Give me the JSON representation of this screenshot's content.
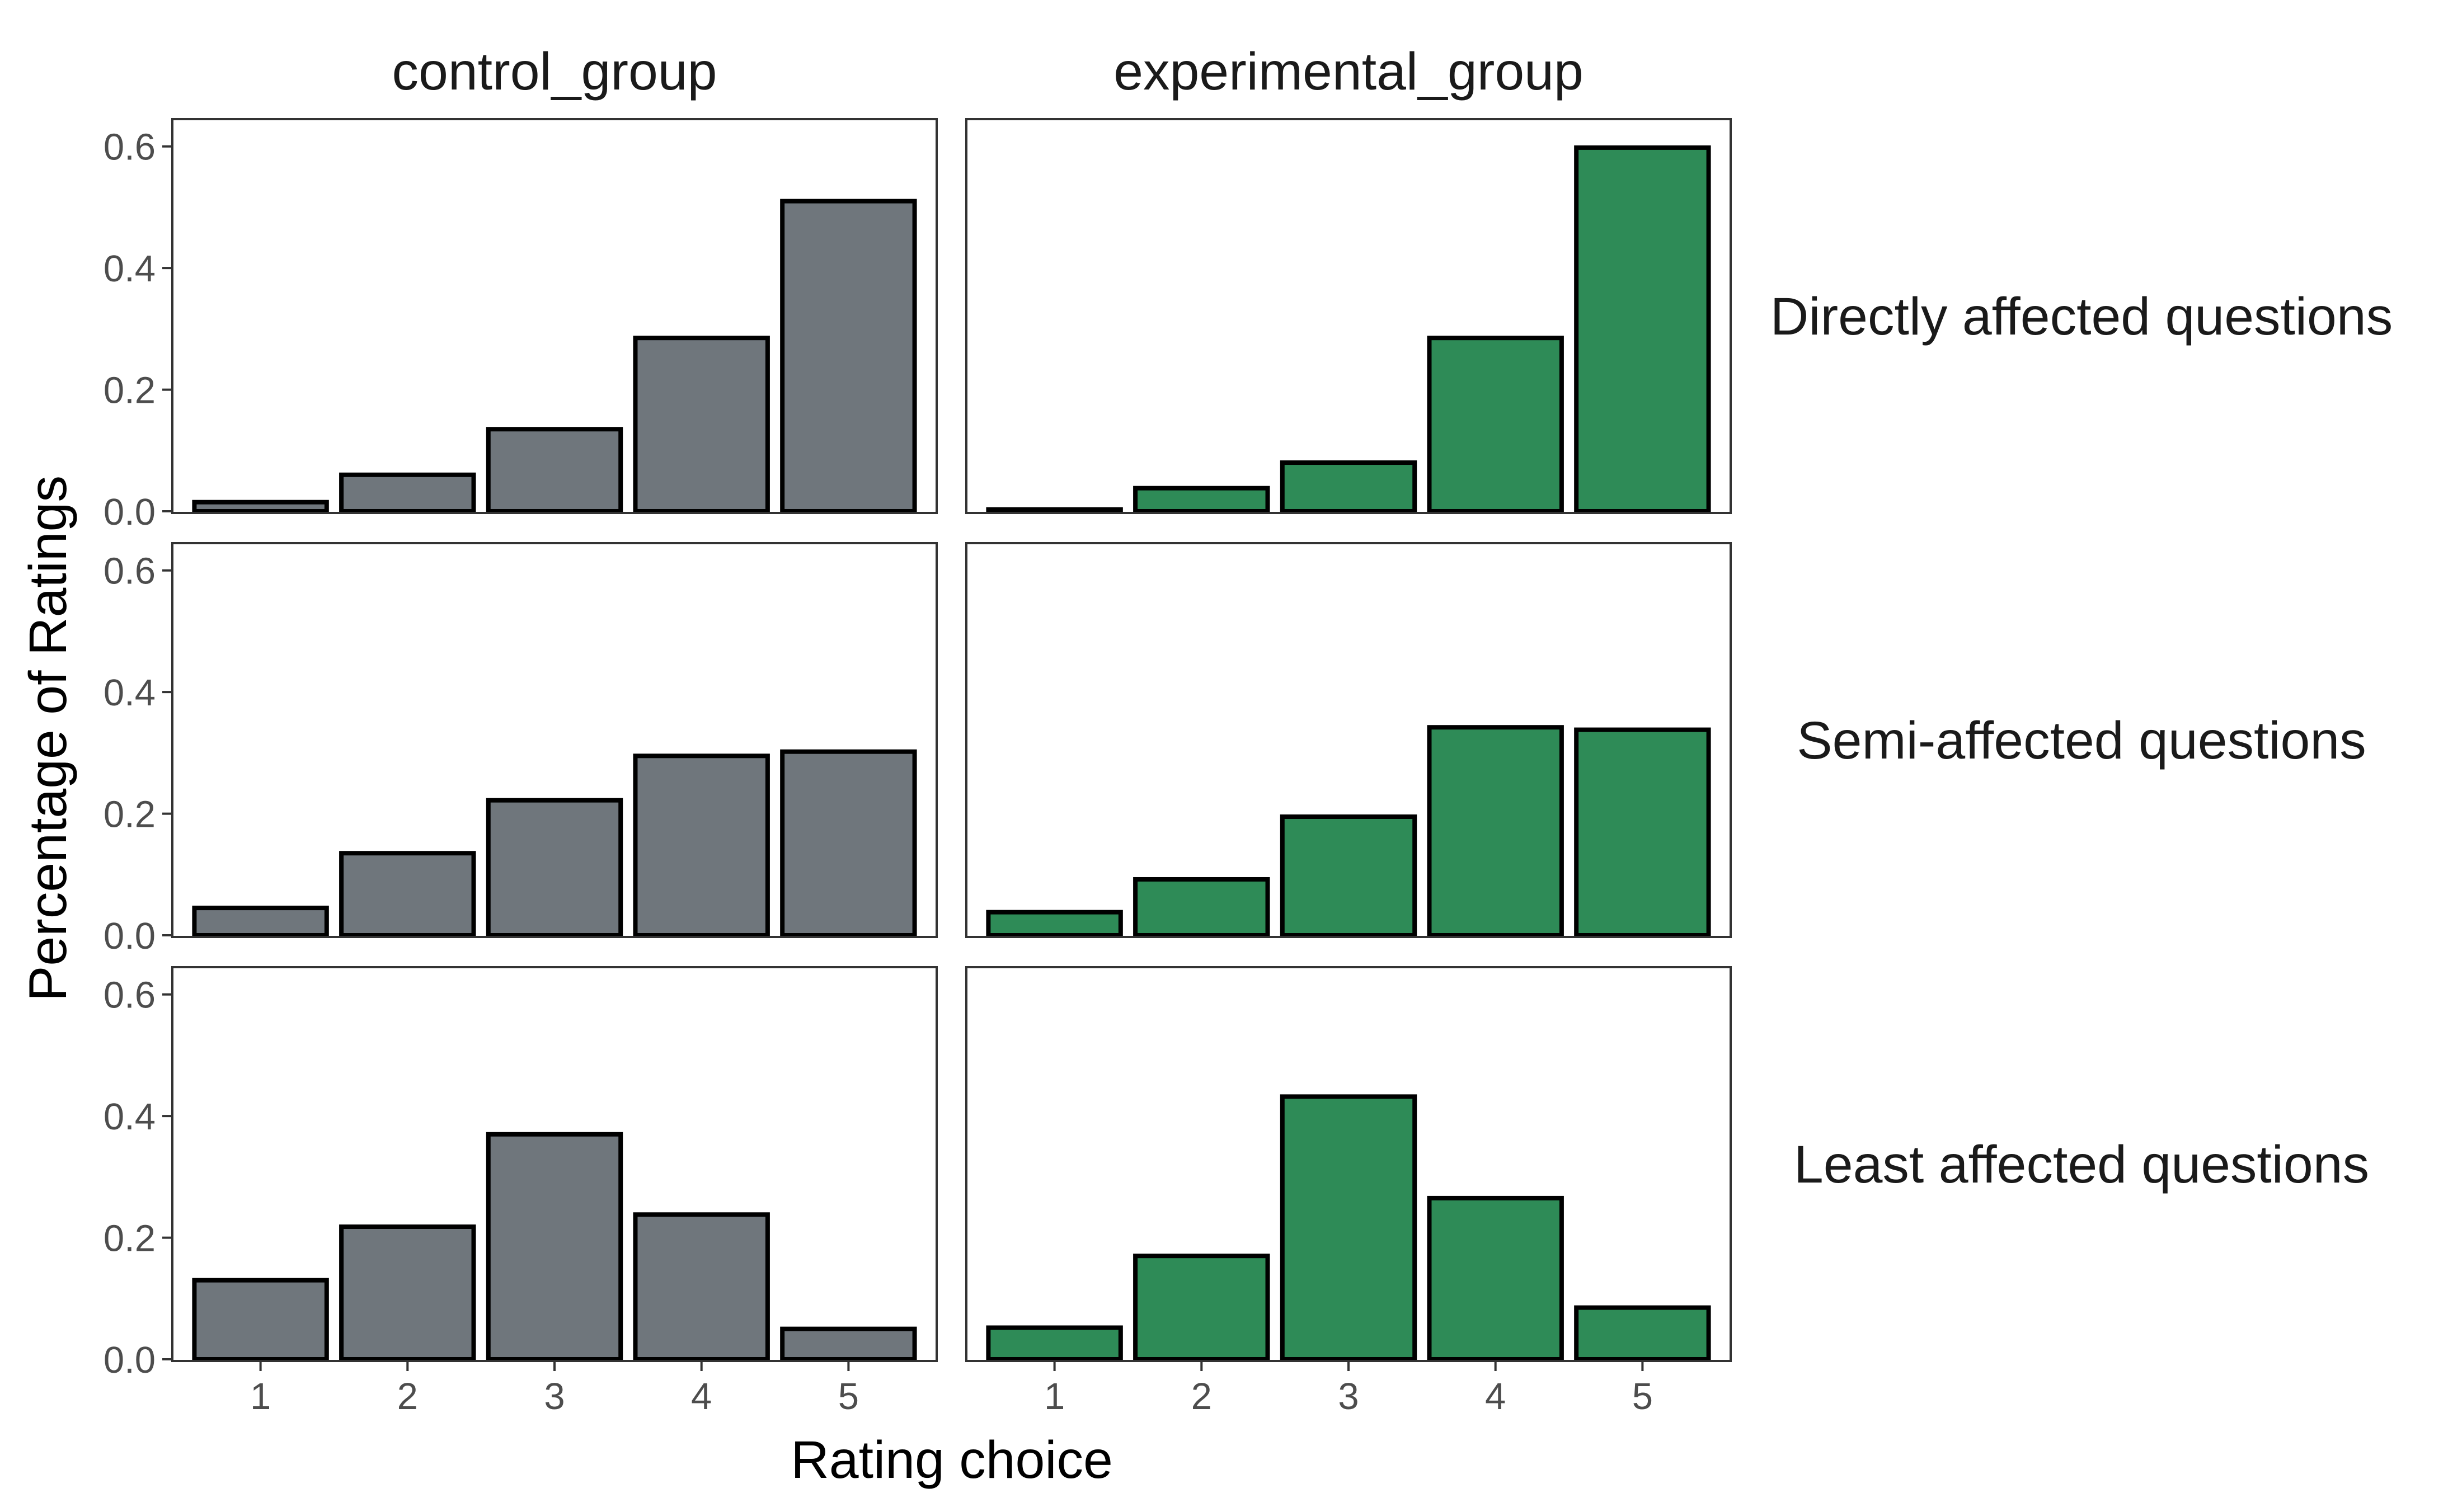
{
  "chart_data": {
    "type": "bar",
    "xlabel": "Rating choice",
    "ylabel": "Percentage of Ratings",
    "ylim": [
      0,
      0.62
    ],
    "y_ticks": [
      0.0,
      0.2,
      0.4,
      0.6
    ],
    "y_tick_labels": [
      "0.0",
      "0.2",
      "0.4",
      "0.6"
    ],
    "categories": [
      "1",
      "2",
      "3",
      "4",
      "5"
    ],
    "grid": false,
    "columns": [
      {
        "label": "control_group",
        "color": "#6f767c"
      },
      {
        "label": "experimental_group",
        "color": "#2e8b57"
      }
    ],
    "rows": [
      {
        "label": "Directly affected questions",
        "values": {
          "control_group": [
            0.015,
            0.06,
            0.135,
            0.285,
            0.51
          ],
          "experimental_group": [
            0.003,
            0.038,
            0.08,
            0.285,
            0.598
          ]
        }
      },
      {
        "label": "Semi-affected questions",
        "values": {
          "control_group": [
            0.045,
            0.135,
            0.222,
            0.295,
            0.302
          ],
          "experimental_group": [
            0.038,
            0.092,
            0.195,
            0.342,
            0.338
          ]
        }
      },
      {
        "label": "Least affected questions",
        "values": {
          "control_group": [
            0.13,
            0.218,
            0.37,
            0.238,
            0.05
          ],
          "experimental_group": [
            0.052,
            0.17,
            0.432,
            0.265,
            0.085
          ]
        }
      }
    ]
  }
}
